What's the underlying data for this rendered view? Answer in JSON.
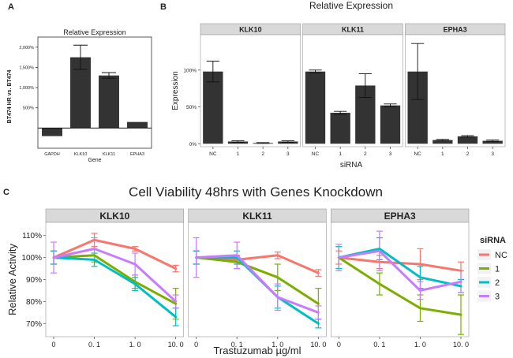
{
  "chart_data": [
    {
      "panel_label": "A",
      "type": "bar",
      "title": "Relative Expression",
      "xlabel": "Gene",
      "ylabel": "BT474 HR vs. BT474",
      "categories": [
        "GAPDH",
        "KLK10",
        "KLK11",
        "EPHA3"
      ],
      "values": [
        -200,
        1750,
        1300,
        150
      ],
      "errors": [
        0,
        300,
        70,
        0
      ],
      "yticks": [
        "500%",
        "1,000%",
        "1,500%",
        "2,000%"
      ],
      "ytick_values": [
        500,
        1000,
        1500,
        2000
      ],
      "ylim": [
        -500,
        2250
      ],
      "baseline": 0
    },
    {
      "panel_label": "B",
      "type": "bar",
      "title": "Relative Expression",
      "xlabel": "siRNA",
      "ylabel": "Expression",
      "categories": [
        "NC",
        "1",
        "2",
        "3"
      ],
      "yticks": [
        "0%",
        "50%",
        "100%"
      ],
      "ytick_values": [
        0,
        50,
        100
      ],
      "ylim": [
        -4,
        148
      ],
      "facets": [
        {
          "name": "KLK10",
          "values": [
            98,
            3,
            1,
            3
          ],
          "errors": [
            14,
            1,
            0.5,
            1
          ]
        },
        {
          "name": "KLK11",
          "values": [
            98,
            42,
            79,
            52
          ],
          "errors": [
            2,
            2,
            16,
            2
          ]
        },
        {
          "name": "EPHA3",
          "values": [
            98,
            5,
            10,
            4
          ],
          "errors": [
            38,
            1,
            1,
            1
          ]
        }
      ]
    },
    {
      "panel_label": "C",
      "type": "line",
      "title": "Cell Viability 48hrs with Genes Knockdown",
      "xlabel": "Trastuzumab µg/ml",
      "ylabel": "Relative Activity",
      "x": [
        "0",
        "0. 1",
        "1. 0",
        "10. 0"
      ],
      "yticks": [
        "70%",
        "80%",
        "90%",
        "100%",
        "110%"
      ],
      "ytick_values": [
        70,
        80,
        90,
        100,
        110
      ],
      "ylim": [
        64,
        116
      ],
      "legend": {
        "title": "siRNA",
        "items": [
          {
            "label": "NC",
            "color": "#f8766d"
          },
          {
            "label": "1",
            "color": "#7cae00"
          },
          {
            "label": "2",
            "color": "#00bfc4"
          },
          {
            "label": "3",
            "color": "#c77cff"
          }
        ]
      },
      "facets": [
        {
          "name": "KLK10",
          "series": [
            {
              "name": "NC",
              "values": [
                100,
                108,
                104,
                95
              ],
              "errors": [
                3,
                3,
                1,
                1.5
              ]
            },
            {
              "name": "1",
              "values": [
                100,
                101,
                89,
                79
              ],
              "errors": [
                3,
                3,
                3,
                7
              ]
            },
            {
              "name": "2",
              "values": [
                100,
                99,
                88,
                73
              ],
              "errors": [
                3,
                3,
                3,
                4
              ]
            },
            {
              "name": "3",
              "values": [
                100,
                104,
                97,
                80
              ],
              "errors": [
                7,
                5,
                5,
                3
              ]
            }
          ]
        },
        {
          "name": "KLK11",
          "series": [
            {
              "name": "NC",
              "values": [
                100,
                99,
                101,
                93
              ],
              "errors": [
                3,
                2,
                1.5,
                1.5
              ]
            },
            {
              "name": "1",
              "values": [
                100,
                98,
                91,
                79
              ],
              "errors": [
                3,
                3,
                6,
                7
              ]
            },
            {
              "name": "2",
              "values": [
                100,
                100,
                82,
                70
              ],
              "errors": [
                3,
                3,
                5,
                2
              ]
            },
            {
              "name": "3",
              "values": [
                100,
                101,
                82,
                75
              ],
              "errors": [
                9,
                6,
                6,
                3
              ]
            }
          ]
        },
        {
          "name": "EPHA3",
          "series": [
            {
              "name": "NC",
              "values": [
                100,
                98,
                97,
                94
              ],
              "errors": [
                3,
                3,
                7,
                4
              ]
            },
            {
              "name": "1",
              "values": [
                100,
                88,
                77,
                74
              ],
              "errors": [
                5,
                5,
                6,
                9
              ]
            },
            {
              "name": "2",
              "values": [
                100,
                104,
                91,
                87
              ],
              "errors": [
                5,
                5,
                5,
                3
              ]
            },
            {
              "name": "3",
              "values": [
                100,
                103,
                85,
                89
              ],
              "errors": [
                6,
                9,
                4,
                5
              ]
            }
          ]
        }
      ]
    }
  ]
}
